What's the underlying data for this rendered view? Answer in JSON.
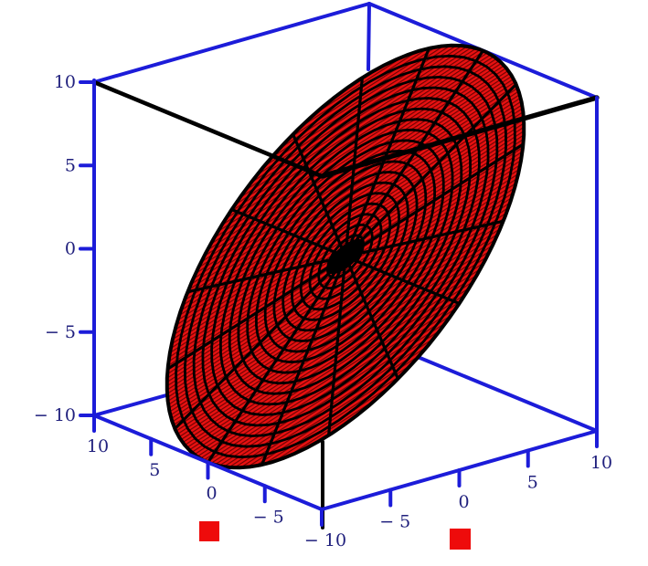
{
  "chart_data": {
    "type": "3d-surface",
    "title": "",
    "description": "Maple-style 3D plot of a flat circular disk (plane z = y over x^2+y^2 <= 100) shown as a red surface with a black polar mesh inside a blue axis box",
    "view": {
      "xlim": [
        -10,
        10
      ],
      "ylim": [
        -10,
        10
      ],
      "zlim": [
        -10,
        10
      ]
    },
    "axes": {
      "box_color": "#1c1cd9",
      "front_edge_color": "#000000",
      "label_color": "#20207d",
      "grid": false,
      "z_ticks": {
        "values": [
          10,
          5,
          0,
          -5,
          -10
        ],
        "labels": [
          "10",
          "5",
          "0",
          "− 5",
          "− 10"
        ]
      },
      "x_ticks": {
        "values": [
          10,
          5,
          0,
          -5,
          -10
        ],
        "labels": [
          "10",
          "5",
          "0",
          "− 5",
          "− 10"
        ]
      },
      "y_ticks": {
        "values": [
          -5,
          0,
          5,
          10
        ],
        "labels": [
          "− 5",
          "0",
          "5",
          "10"
        ]
      }
    },
    "surface": {
      "kind": "disk",
      "equation": "z = y",
      "radius": 10,
      "mesh": {
        "rings": 20,
        "ring_step": 0.5,
        "spokes": 16,
        "spoke_step_deg": 22.5
      },
      "fill_color": "#e81111",
      "stripe_color": "#6e0202",
      "mesh_color": "#000000"
    },
    "legend": {
      "squares": [
        {
          "color": "#ee0b0b"
        },
        {
          "color": "#ee0b0b"
        }
      ]
    }
  }
}
